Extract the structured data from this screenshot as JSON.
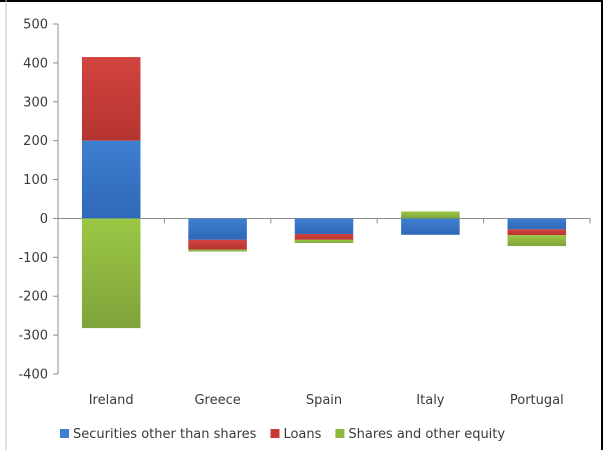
{
  "chart_data": {
    "type": "bar",
    "stacked": true,
    "categories": [
      "Ireland",
      "Greece",
      "Spain",
      "Italy",
      "Portugal"
    ],
    "series": [
      {
        "name": "Securities other than shares",
        "color": "#3f7fd0",
        "values": [
          200,
          -55,
          -40,
          -42,
          -28
        ]
      },
      {
        "name": "Loans",
        "color": "#c93a37",
        "values": [
          215,
          -25,
          -15,
          0,
          -15
        ]
      },
      {
        "name": "Shares and other equity",
        "color": "#8db83c",
        "values": [
          -282,
          -5,
          -8,
          18,
          -28
        ]
      }
    ],
    "yticks": [
      500,
      400,
      300,
      200,
      100,
      0,
      -100,
      -200,
      -300,
      -400
    ],
    "ylim": [
      -400,
      500
    ],
    "grid": false,
    "legend_position": "bottom"
  }
}
